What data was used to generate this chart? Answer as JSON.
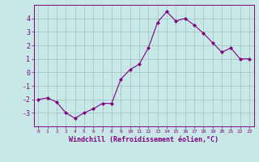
{
  "x": [
    0,
    1,
    2,
    3,
    4,
    5,
    6,
    7,
    8,
    9,
    10,
    11,
    12,
    13,
    14,
    15,
    16,
    17,
    18,
    19,
    20,
    21,
    22,
    23
  ],
  "y": [
    -2.0,
    -1.9,
    -2.2,
    -3.0,
    -3.4,
    -3.0,
    -2.7,
    -2.3,
    -2.3,
    -0.5,
    0.2,
    0.6,
    1.8,
    3.7,
    4.5,
    3.8,
    4.0,
    3.5,
    2.9,
    2.2,
    1.5,
    1.8,
    1.0,
    1.0
  ],
  "line_color": "#800080",
  "marker": "D",
  "marker_size": 2,
  "bg_color": "#c8e8e8",
  "grid_color": "#a0c0c0",
  "tick_color": "#800080",
  "xlabel": "Windchill (Refroidissement éolien,°C)",
  "xlim": [
    -0.5,
    23.5
  ],
  "ylim": [
    -4.0,
    5.0
  ],
  "yticks": [
    -3,
    -2,
    -1,
    0,
    1,
    2,
    3,
    4
  ],
  "xticks": [
    0,
    1,
    2,
    3,
    4,
    5,
    6,
    7,
    8,
    9,
    10,
    11,
    12,
    13,
    14,
    15,
    16,
    17,
    18,
    19,
    20,
    21,
    22,
    23
  ]
}
